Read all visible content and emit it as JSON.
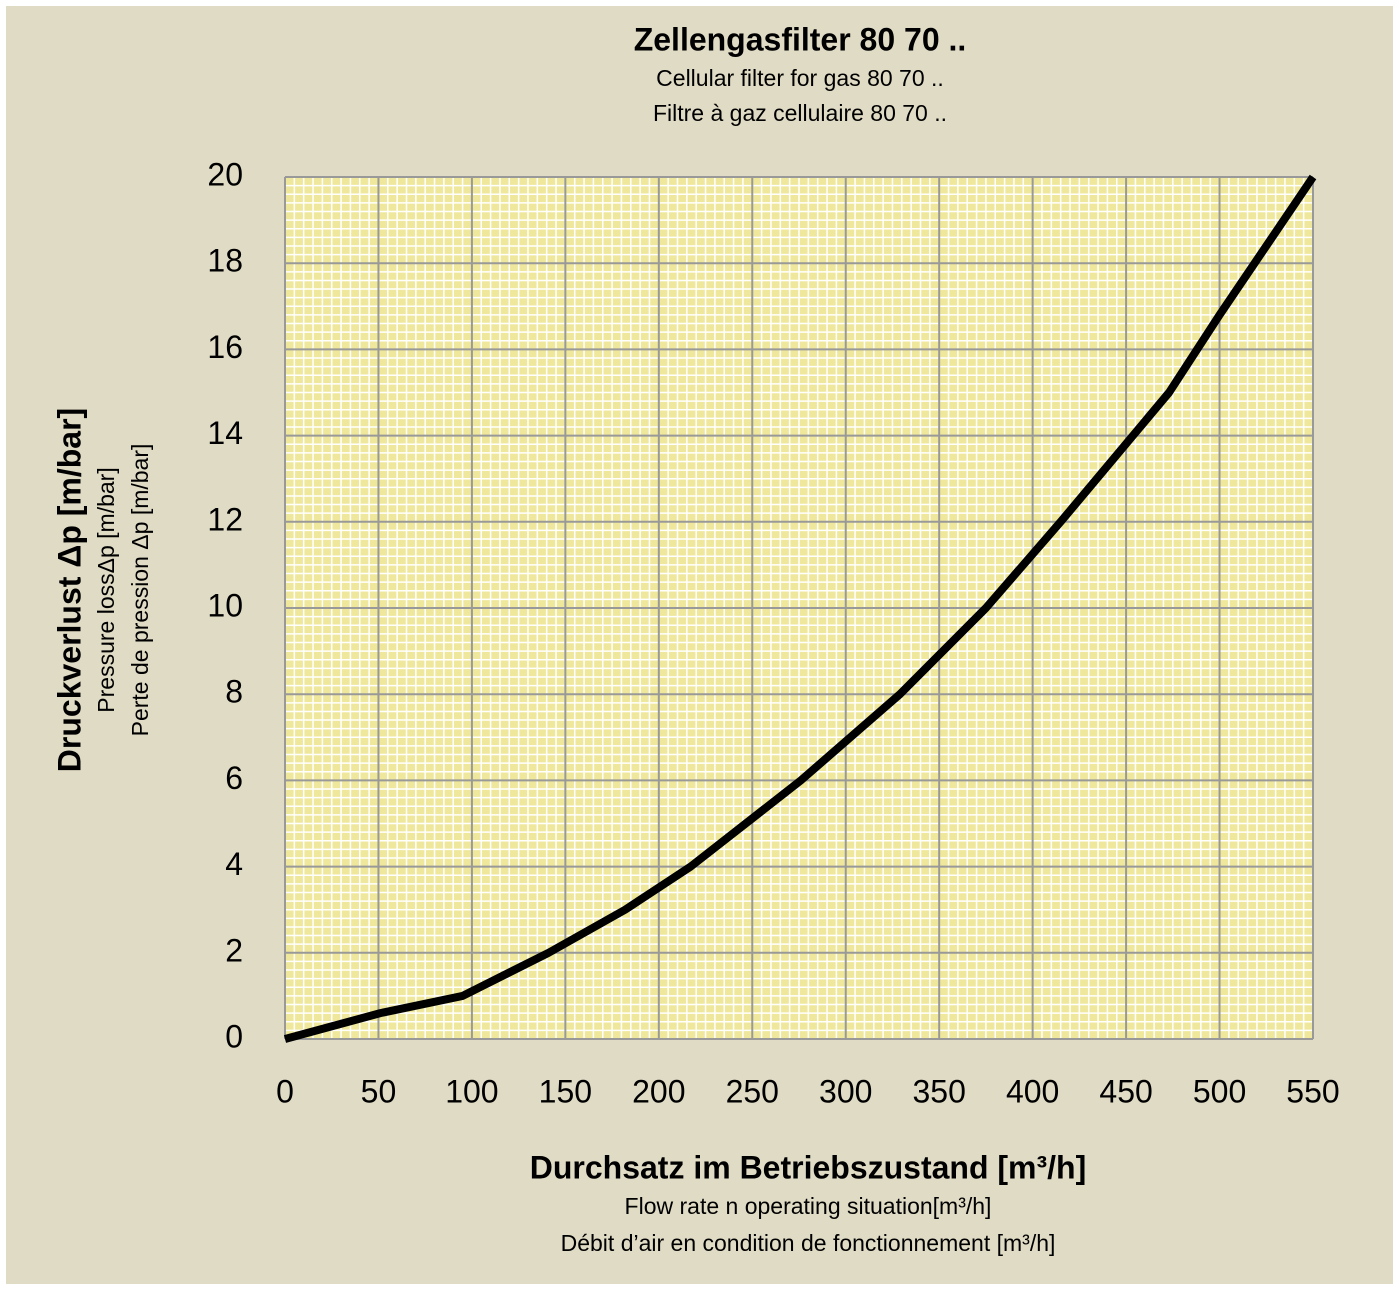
{
  "chart_data": {
    "type": "line",
    "title": "Zellengasfilter 80 70 ..",
    "subtitles": [
      "Cellular filter for gas 80 70 ..",
      "Filtre à gaz cellulaire 80 70 .."
    ],
    "ylabel": [
      "Druckverlust Δp [m/bar]",
      "Pressure lossΔp [m/bar]",
      "Perte de pression Δp [m/bar]"
    ],
    "xlabel": [
      "Durchsatz im Betriebszustand [m³/h]",
      "Flow rate n operating situation[m³/h]",
      "Débit d’air en condition de fonctionnement [m³/h]"
    ],
    "x": [
      0,
      51,
      95,
      141,
      182,
      217,
      276,
      329,
      375,
      415,
      473,
      500,
      525,
      550
    ],
    "series": [
      {
        "name": "Zellengasfilter 80 70 ..",
        "color": "#000000",
        "values": [
          0,
          0.6,
          1,
          2,
          3,
          4,
          6,
          8,
          10,
          12,
          15,
          16.8,
          18.4,
          20
        ]
      }
    ],
    "xlim": [
      0,
      550
    ],
    "xticks": [
      0,
      50,
      100,
      150,
      200,
      250,
      300,
      350,
      400,
      450,
      500,
      550
    ],
    "ylim": [
      0,
      20
    ],
    "yticks": [
      0,
      2,
      4,
      6,
      8,
      10,
      12,
      14,
      16,
      18,
      20
    ],
    "grid": true
  }
}
